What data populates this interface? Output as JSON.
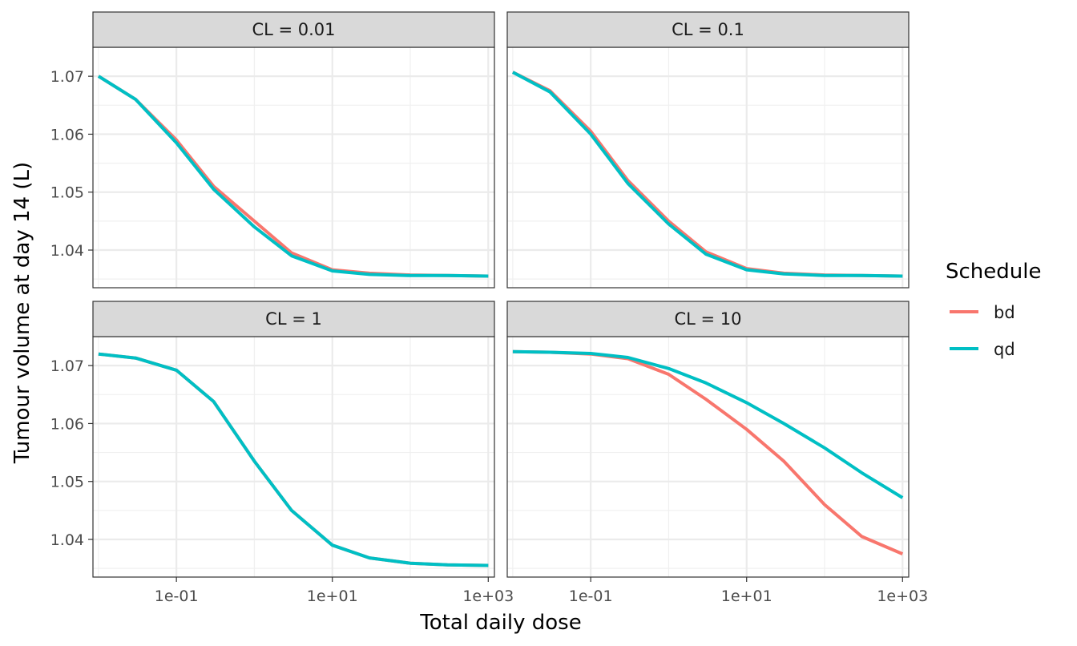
{
  "chart_data": {
    "type": "line",
    "layout": "facet_wrap_2x2",
    "xlabel": "Total daily dose",
    "ylabel": "Tumour volume at day 14 (L)",
    "x_scale": "log10",
    "xlim": [
      0.0085,
      1200
    ],
    "ylim": [
      1.0335,
      1.075
    ],
    "x_ticks": [
      {
        "value": 0.1,
        "label": "1e-01"
      },
      {
        "value": 10,
        "label": "1e+01"
      },
      {
        "value": 1000,
        "label": "1e+03"
      }
    ],
    "x_minor_ticks": [
      0.01,
      1,
      100
    ],
    "y_ticks": [
      {
        "value": 1.04,
        "label": "1.04"
      },
      {
        "value": 1.05,
        "label": "1.05"
      },
      {
        "value": 1.06,
        "label": "1.06"
      },
      {
        "value": 1.07,
        "label": "1.07"
      }
    ],
    "y_minor_ticks": [
      1.035,
      1.045,
      1.055,
      1.065
    ],
    "grid": true,
    "legend": {
      "title": "Schedule",
      "position": "right",
      "entries": [
        {
          "name": "bd",
          "color": "#f8766d"
        },
        {
          "name": "qd",
          "color": "#00bfc4"
        }
      ]
    },
    "x": [
      0.01,
      0.03,
      0.1,
      0.3,
      1,
      3,
      10,
      30,
      100,
      300,
      1000
    ],
    "panels": [
      {
        "strip": "CL = 0.01",
        "series": [
          {
            "name": "bd",
            "values": [
              1.07,
              1.066,
              1.059,
              1.051,
              1.045,
              1.0395,
              1.0366,
              1.036,
              1.0357,
              1.0356,
              1.0355
            ]
          },
          {
            "name": "qd",
            "values": [
              1.07,
              1.066,
              1.0585,
              1.0505,
              1.044,
              1.039,
              1.0364,
              1.0358,
              1.0356,
              1.0356,
              1.0355
            ]
          }
        ]
      },
      {
        "strip": "CL = 0.1",
        "series": [
          {
            "name": "bd",
            "values": [
              1.0707,
              1.0675,
              1.0605,
              1.052,
              1.045,
              1.0397,
              1.0368,
              1.036,
              1.0357,
              1.0356,
              1.0355
            ]
          },
          {
            "name": "qd",
            "values": [
              1.0707,
              1.0673,
              1.06,
              1.0515,
              1.0445,
              1.0393,
              1.0366,
              1.0359,
              1.0356,
              1.0356,
              1.0355
            ]
          }
        ]
      },
      {
        "strip": "CL = 1",
        "series": [
          {
            "name": "bd",
            "values": [
              1.072,
              1.0713,
              1.0692,
              1.0638,
              1.0535,
              1.045,
              1.039,
              1.0368,
              1.0359,
              1.0356,
              1.0355
            ]
          },
          {
            "name": "qd",
            "values": [
              1.072,
              1.0713,
              1.0692,
              1.0638,
              1.0535,
              1.045,
              1.039,
              1.0368,
              1.0359,
              1.0356,
              1.0355
            ]
          }
        ]
      },
      {
        "strip": "CL = 10",
        "series": [
          {
            "name": "bd",
            "values": [
              1.0724,
              1.0723,
              1.072,
              1.0712,
              1.0685,
              1.0642,
              1.059,
              1.0535,
              1.046,
              1.0405,
              1.0375
            ]
          },
          {
            "name": "qd",
            "values": [
              1.0724,
              1.0723,
              1.0721,
              1.0714,
              1.0695,
              1.067,
              1.0636,
              1.06,
              1.0558,
              1.0515,
              1.0472
            ]
          }
        ]
      }
    ]
  }
}
